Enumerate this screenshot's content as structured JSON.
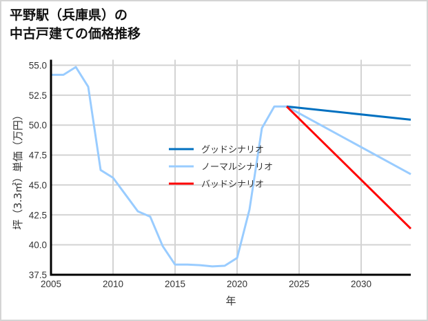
{
  "chart_data": {
    "type": "line",
    "title": "平野駅（兵庫県）の\n中古戸建ての価格推移",
    "title_lines": [
      "平野駅（兵庫県）の",
      "中古戸建ての価格推移"
    ],
    "xlabel": "年",
    "ylabel": "坪（3.3㎡）単価（万円）",
    "xlim": [
      2005,
      2034
    ],
    "ylim": [
      37.5,
      55.0
    ],
    "xticks": [
      2005,
      2010,
      2015,
      2020,
      2025,
      2030
    ],
    "yticks": [
      37.5,
      40.0,
      42.5,
      45.0,
      47.5,
      50.0,
      52.5,
      55.0
    ],
    "grid": true,
    "legend_position": "center",
    "series": [
      {
        "name": "グッドシナリオ",
        "color": "#0070c0",
        "x": [
          2024,
          2034
        ],
        "values": [
          51.55,
          50.45
        ]
      },
      {
        "name": "ノーマルシナリオ",
        "color": "#99ccff",
        "x": [
          2005,
          2006,
          2007,
          2008,
          2009,
          2010,
          2011,
          2012,
          2013,
          2014,
          2015,
          2016,
          2017,
          2018,
          2019,
          2020,
          2021,
          2022,
          2023,
          2024,
          2034
        ],
        "values": [
          54.2,
          54.2,
          54.85,
          53.2,
          46.25,
          45.6,
          44.2,
          42.8,
          42.35,
          39.9,
          38.35,
          38.35,
          38.3,
          38.2,
          38.25,
          38.9,
          42.95,
          49.75,
          51.55,
          51.55,
          45.9
        ]
      },
      {
        "name": "バッドシナリオ",
        "color": "#ff0000",
        "x": [
          2024,
          2034
        ],
        "values": [
          51.55,
          41.35
        ]
      }
    ]
  }
}
